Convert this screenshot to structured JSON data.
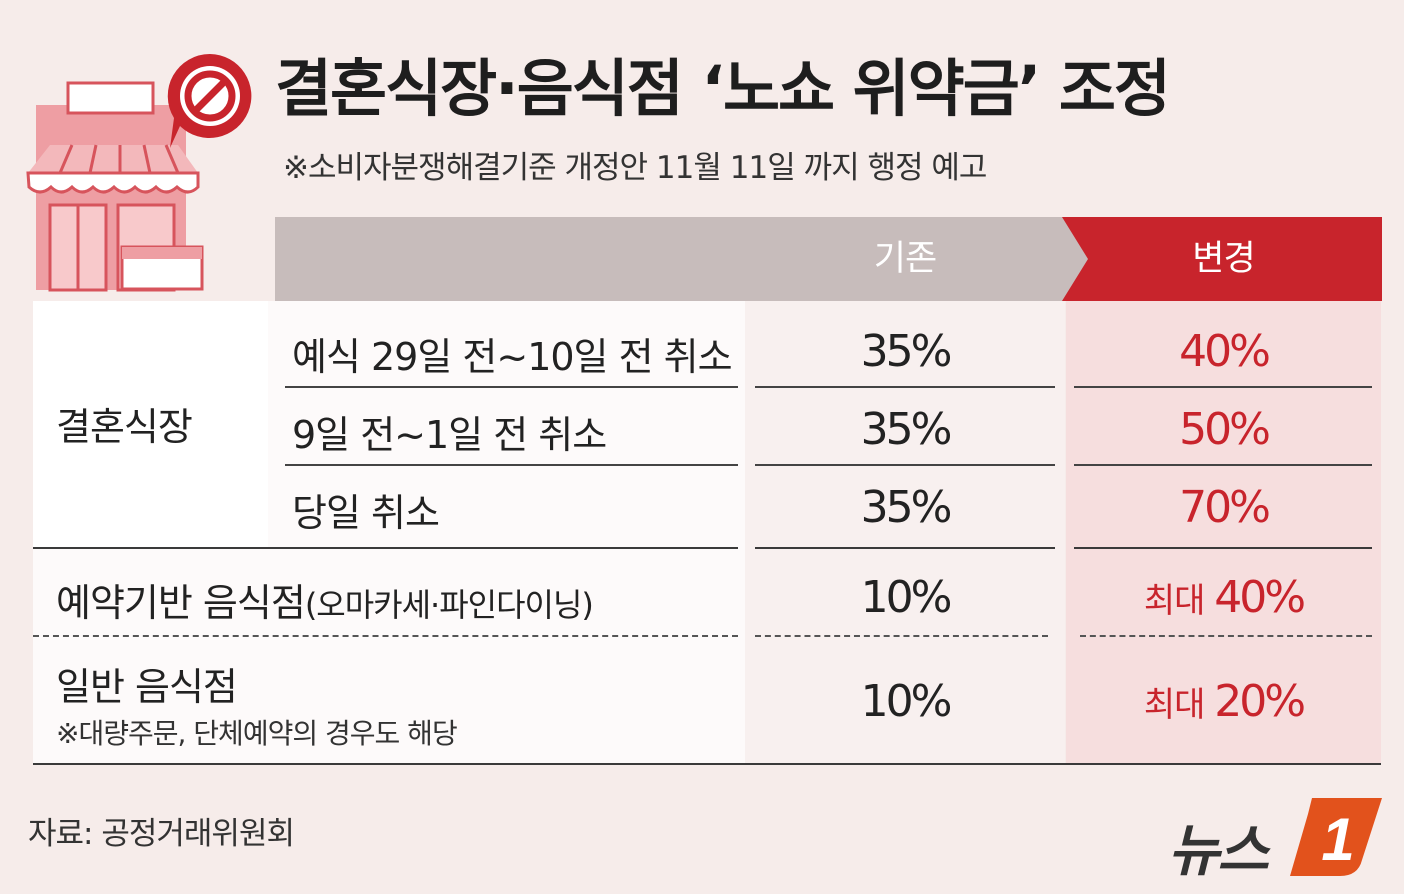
{
  "title": "결혼식장·음식점 ‘노쇼 위약금’ 조정",
  "subtitle": "※소비자분쟁해결기준 개정안 11월 11일 까지 행정 예고",
  "header": {
    "before": "기존",
    "after": "변경"
  },
  "wedding": {
    "label": "결혼식장",
    "rows": [
      {
        "condition": "예식 29일 전~10일 전 취소",
        "before": "35%",
        "after": "40%"
      },
      {
        "condition": "9일 전~1일 전 취소",
        "before": "35%",
        "after": "50%"
      },
      {
        "condition": "당일 취소",
        "before": "35%",
        "after": "70%"
      }
    ]
  },
  "reservation": {
    "label": "예약기반 음식점",
    "paren": "(오마카세·파인다이닝)",
    "before": "10%",
    "after_prefix": "최대 ",
    "after_value": "40%"
  },
  "general": {
    "label": "일반 음식점",
    "note": "※대량주문, 단체예약의 경우도 해당",
    "before": "10%",
    "after_prefix": "최대 ",
    "after_value": "20%"
  },
  "source": "자료: 공정거래위원회",
  "logo": {
    "text": "뉴스",
    "mark": "1"
  },
  "colors": {
    "accent_red": "#c8242c",
    "header_grey": "#c7bcbb",
    "background": "#f6ecea"
  },
  "icons": [
    "store-icon",
    "no-entry-icon"
  ]
}
